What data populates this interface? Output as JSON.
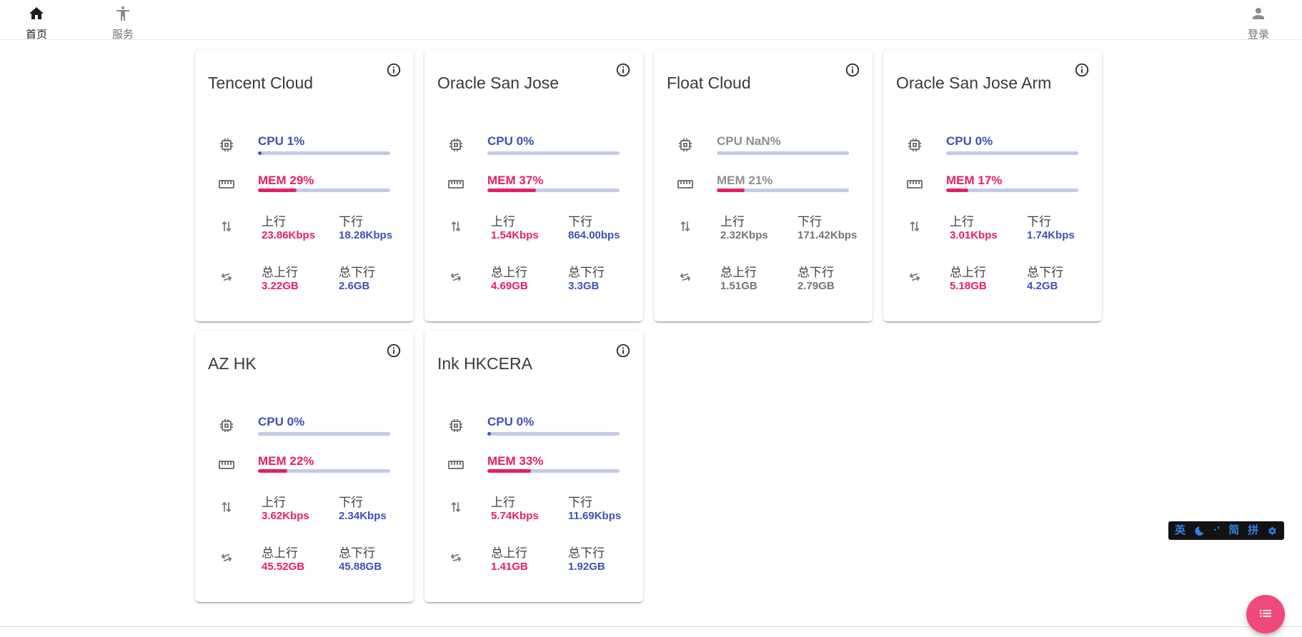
{
  "nav": {
    "home": {
      "label": "首页"
    },
    "services": {
      "label": "服务"
    },
    "login": {
      "label": "登录"
    }
  },
  "labels": {
    "up": "上行",
    "down": "下行",
    "total_up": "总上行",
    "total_down": "总下行"
  },
  "cards": [
    {
      "title": "Tencent Cloud",
      "cpu_text": "CPU 1%",
      "cpu_percent": 1,
      "cpu_dot": true,
      "mem_text": "MEM 29%",
      "mem_percent": 29,
      "offline": false,
      "up_value": "23.86Kbps",
      "down_value": "18.28Kbps",
      "total_up_value": "3.22GB",
      "total_down_value": "2.6GB"
    },
    {
      "title": "Oracle San Jose",
      "cpu_text": "CPU 0%",
      "cpu_percent": 0,
      "cpu_dot": false,
      "mem_text": "MEM 37%",
      "mem_percent": 37,
      "offline": false,
      "up_value": "1.54Kbps",
      "down_value": "864.00bps",
      "total_up_value": "4.69GB",
      "total_down_value": "3.3GB"
    },
    {
      "title": "Float Cloud",
      "cpu_text": "CPU NaN%",
      "cpu_percent": 0,
      "cpu_dot": false,
      "mem_text": "MEM 21%",
      "mem_percent": 21,
      "offline": true,
      "up_value": "2.32Kbps",
      "down_value": "171.42Kbps",
      "total_up_value": "1.51GB",
      "total_down_value": "2.79GB"
    },
    {
      "title": "Oracle San Jose Arm",
      "cpu_text": "CPU 0%",
      "cpu_percent": 0,
      "cpu_dot": false,
      "mem_text": "MEM 17%",
      "mem_percent": 17,
      "offline": false,
      "up_value": "3.01Kbps",
      "down_value": "1.74Kbps",
      "total_up_value": "5.18GB",
      "total_down_value": "4.2GB"
    },
    {
      "title": "AZ HK",
      "cpu_text": "CPU 0%",
      "cpu_percent": 0,
      "cpu_dot": false,
      "mem_text": "MEM 22%",
      "mem_percent": 22,
      "offline": false,
      "up_value": "3.62Kbps",
      "down_value": "2.34Kbps",
      "total_up_value": "45.52GB",
      "total_down_value": "45.88GB"
    },
    {
      "title": "Ink HKCERA",
      "cpu_text": "CPU 0%",
      "cpu_percent": 0,
      "cpu_dot": true,
      "mem_text": "MEM 33%",
      "mem_percent": 33,
      "offline": false,
      "up_value": "5.74Kbps",
      "down_value": "11.69Kbps",
      "total_up_value": "1.41GB",
      "total_down_value": "1.92GB"
    }
  ],
  "ime": {
    "lang": "英",
    "punct": "·’",
    "simplified": "简",
    "pinyin": "拼"
  },
  "colors": {
    "indigo": "#3F51B5",
    "pink": "#E91E63",
    "track": "#C5CAE9",
    "fab": "#EF4A7B",
    "ime_blue": "#2F80E8"
  }
}
